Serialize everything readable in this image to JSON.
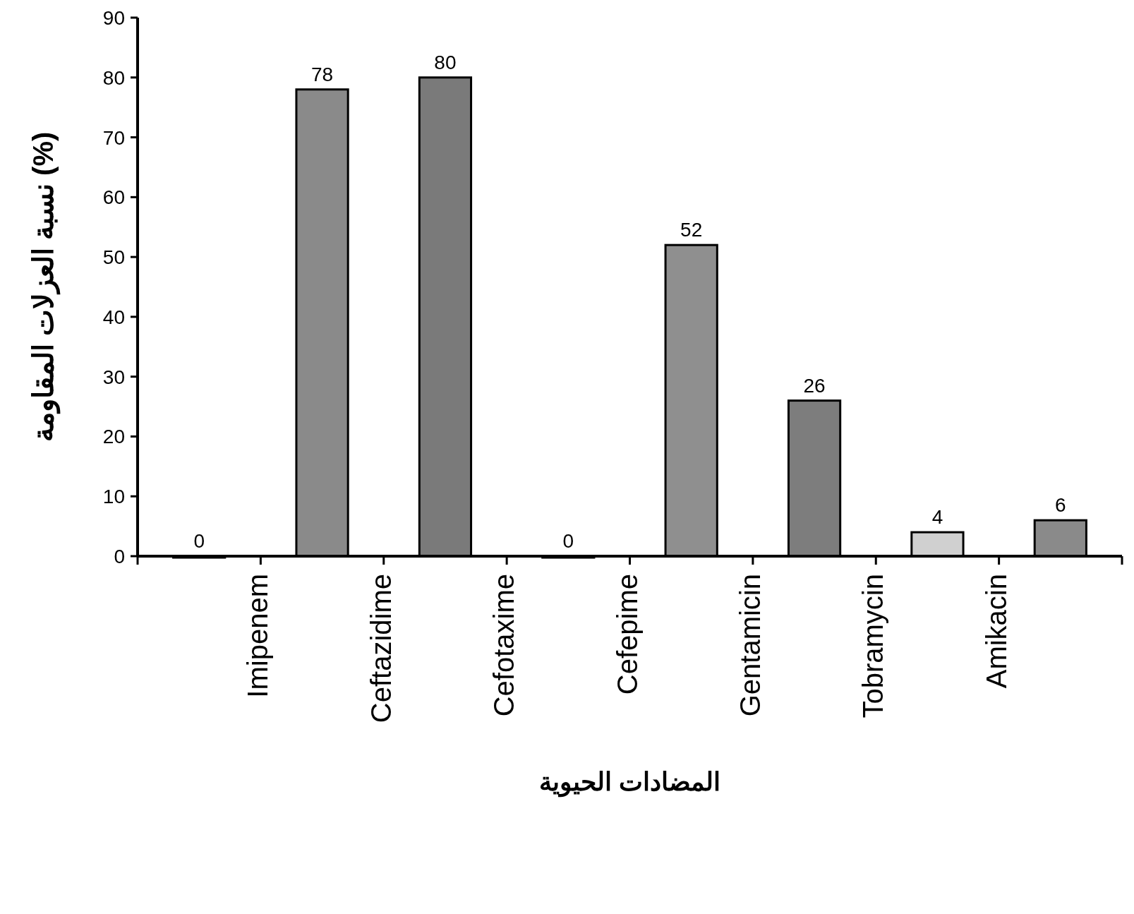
{
  "chart_data": {
    "type": "bar",
    "xlabel": "المضادات الحيوية",
    "ylabel": "نسبة العزلات المقاومة (%)",
    "categories": [
      "Imipenem",
      "Ceftazidime",
      "Cefotaxime",
      "Cefepime",
      "Gentamicin",
      "Tobramycin",
      "Amikacin",
      null
    ],
    "values": [
      0,
      78,
      80,
      0,
      52,
      26,
      4,
      6
    ],
    "colors": [
      "#8a8a8a",
      "#8a8a8a",
      "#7a7a7a",
      "#8a8a8a",
      "#8f8f8f",
      "#7d7d7d",
      "#d0d0d0",
      "#8a8a8a"
    ],
    "ylim": [
      0,
      90
    ],
    "yticks": [
      0,
      10,
      20,
      30,
      40,
      50,
      60,
      70,
      80,
      90
    ],
    "data_labels": true
  }
}
